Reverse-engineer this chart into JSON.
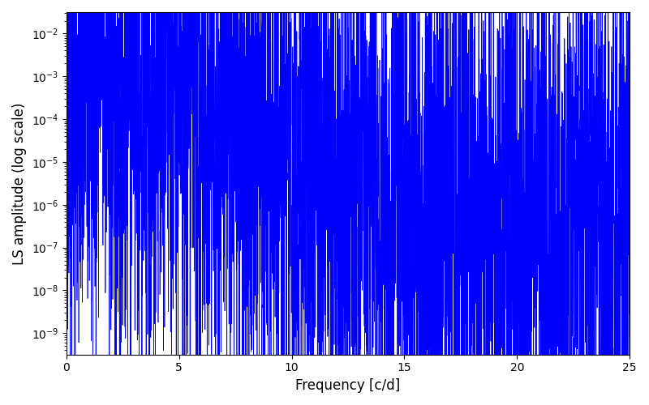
{
  "xlabel": "Frequency [c/d]",
  "ylabel": "LS amplitude (log scale)",
  "xlim": [
    0,
    25
  ],
  "ylim_log_min": -9.5,
  "ylim_log_max": -1.5,
  "line_color": "#0000ff",
  "linewidth": 0.5,
  "figsize": [
    8.0,
    5.0
  ],
  "dpi": 100,
  "seed": 42,
  "n_points": 5000,
  "background_color": "#ffffff",
  "label_fontsize": 12,
  "tick_fontsize": 10,
  "envelope_base_amp": 0.003,
  "envelope_decay": 0.55,
  "envelope_floor": 5e-07,
  "noise_low_freq": 3.5,
  "noise_high_freq": 3.5
}
